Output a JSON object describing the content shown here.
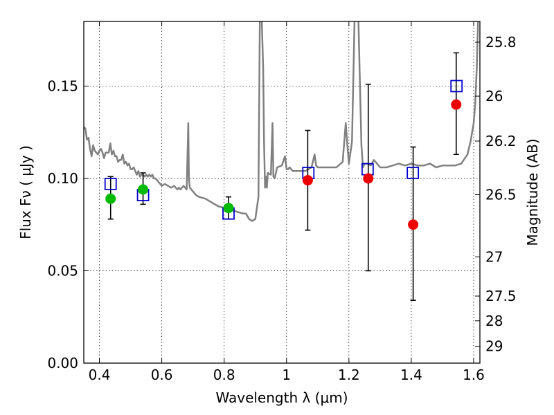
{
  "chart_data": {
    "type": "scatter",
    "xlabel": "Wavelength  λ (μm)",
    "ylabel": "Flux  Fν  ( μJy )",
    "y2label": "Magnitude (AB)",
    "xlim": [
      0.35,
      1.62
    ],
    "ylim": [
      0.0,
      0.185
    ],
    "x_ticks": [
      {
        "value": 0.4,
        "label": "0.4"
      },
      {
        "value": 0.6,
        "label": "0.6"
      },
      {
        "value": 0.8,
        "label": "0.8"
      },
      {
        "value": 1.0,
        "label": "1"
      },
      {
        "value": 1.2,
        "label": "1.2"
      },
      {
        "value": 1.4,
        "label": "1.4"
      },
      {
        "value": 1.6,
        "label": "1.6"
      }
    ],
    "y_ticks": [
      {
        "value": 0.0,
        "label": "0.00"
      },
      {
        "value": 0.05,
        "label": "0.05"
      },
      {
        "value": 0.1,
        "label": "0.10"
      },
      {
        "value": 0.15,
        "label": "0.15"
      }
    ],
    "y2_ticks": [
      {
        "mag": 25.8,
        "label": "25.8"
      },
      {
        "mag": 26.0,
        "label": "26"
      },
      {
        "mag": 26.2,
        "label": "26.2"
      },
      {
        "mag": 26.5,
        "label": "26.5"
      },
      {
        "mag": 27.0,
        "label": "27"
      },
      {
        "mag": 27.5,
        "label": "27.5"
      },
      {
        "mag": 28.0,
        "label": "28"
      },
      {
        "mag": 29.0,
        "label": "29"
      }
    ],
    "grid": true,
    "colors": {
      "sed_model": "#808080",
      "model_photometry": "#0000cc",
      "observed_green": "#00bb00",
      "observed_red": "#ee0000",
      "errorbar": "#000000"
    },
    "sed_model": {
      "x": [
        0.35,
        0.355,
        0.36,
        0.365,
        0.37,
        0.375,
        0.38,
        0.385,
        0.39,
        0.395,
        0.4,
        0.405,
        0.41,
        0.415,
        0.42,
        0.425,
        0.43,
        0.435,
        0.44,
        0.445,
        0.45,
        0.455,
        0.46,
        0.465,
        0.47,
        0.475,
        0.48,
        0.485,
        0.49,
        0.495,
        0.5,
        0.505,
        0.51,
        0.515,
        0.52,
        0.525,
        0.53,
        0.535,
        0.54,
        0.545,
        0.55,
        0.555,
        0.56,
        0.565,
        0.57,
        0.575,
        0.58,
        0.59,
        0.6,
        0.61,
        0.62,
        0.63,
        0.64,
        0.65,
        0.655,
        0.66,
        0.67,
        0.68,
        0.685,
        0.687,
        0.69,
        0.7,
        0.71,
        0.72,
        0.74,
        0.76,
        0.78,
        0.8,
        0.82,
        0.84,
        0.86,
        0.87,
        0.88,
        0.89,
        0.9,
        0.91,
        0.915,
        0.92,
        0.925,
        0.928,
        0.931,
        0.934,
        0.937,
        0.94,
        0.95,
        0.955,
        0.958,
        0.962,
        0.97,
        0.985,
        0.995,
        1.0,
        1.005,
        1.01,
        1.02,
        1.04,
        1.06,
        1.08,
        1.09,
        1.095,
        1.1,
        1.12,
        1.14,
        1.16,
        1.18,
        1.19,
        1.195,
        1.2,
        1.21,
        1.22,
        1.23,
        1.24,
        1.245,
        1.25,
        1.26,
        1.27,
        1.28,
        1.29,
        1.3,
        1.32,
        1.34,
        1.36,
        1.38,
        1.4,
        1.42,
        1.44,
        1.46,
        1.48,
        1.5,
        1.52,
        1.54,
        1.56,
        1.58,
        1.59,
        1.6,
        1.605,
        1.61,
        1.615,
        1.62
      ],
      "y": [
        0.128,
        0.127,
        0.121,
        0.122,
        0.116,
        0.112,
        0.118,
        0.115,
        0.114,
        0.113,
        0.115,
        0.116,
        0.114,
        0.111,
        0.114,
        0.114,
        0.114,
        0.119,
        0.113,
        0.115,
        0.112,
        0.112,
        0.109,
        0.11,
        0.11,
        0.113,
        0.108,
        0.109,
        0.107,
        0.108,
        0.105,
        0.105,
        0.106,
        0.104,
        0.102,
        0.104,
        0.101,
        0.102,
        0.102,
        0.101,
        0.102,
        0.101,
        0.102,
        0.101,
        0.102,
        0.1,
        0.1,
        0.098,
        0.096,
        0.097,
        0.096,
        0.095,
        0.096,
        0.094,
        0.095,
        0.094,
        0.096,
        0.094,
        0.13,
        0.1,
        0.095,
        0.093,
        0.091,
        0.09,
        0.089,
        0.087,
        0.085,
        0.084,
        0.083,
        0.082,
        0.081,
        0.081,
        0.078,
        0.077,
        0.078,
        0.09,
        0.2,
        0.19,
        0.16,
        0.12,
        0.095,
        0.101,
        0.095,
        0.103,
        0.102,
        0.13,
        0.101,
        0.1,
        0.106,
        0.107,
        0.112,
        0.105,
        0.105,
        0.106,
        0.104,
        0.104,
        0.104,
        0.106,
        0.113,
        0.107,
        0.106,
        0.106,
        0.106,
        0.106,
        0.109,
        0.13,
        0.118,
        0.108,
        0.12,
        0.2,
        0.19,
        0.118,
        0.106,
        0.108,
        0.108,
        0.107,
        0.11,
        0.108,
        0.106,
        0.106,
        0.107,
        0.108,
        0.107,
        0.108,
        0.107,
        0.107,
        0.108,
        0.106,
        0.107,
        0.107,
        0.107,
        0.108,
        0.113,
        0.12,
        0.13,
        0.14,
        0.16,
        0.19,
        0.2
      ]
    },
    "model_photometry": {
      "name": "model",
      "x": [
        0.436,
        0.54,
        0.814,
        1.07,
        1.26,
        1.405,
        1.545
      ],
      "y": [
        0.097,
        0.091,
        0.081,
        0.103,
        0.105,
        0.103,
        0.15
      ]
    },
    "observed_photometry": [
      {
        "x": 0.436,
        "y": 0.089,
        "yerr_low": 0.078,
        "yerr_high": 0.101,
        "color": "green"
      },
      {
        "x": 0.54,
        "y": 0.094,
        "yerr_low": 0.086,
        "yerr_high": 0.103,
        "color": "green"
      },
      {
        "x": 0.814,
        "y": 0.084,
        "yerr_low": 0.078,
        "yerr_high": 0.09,
        "color": "green"
      },
      {
        "x": 1.068,
        "y": 0.099,
        "yerr_low": 0.072,
        "yerr_high": 0.126,
        "color": "red"
      },
      {
        "x": 1.262,
        "y": 0.1,
        "yerr_low": 0.05,
        "yerr_high": 0.151,
        "color": "red"
      },
      {
        "x": 1.406,
        "y": 0.075,
        "yerr_low": 0.034,
        "yerr_high": 0.117,
        "color": "red"
      },
      {
        "x": 1.544,
        "y": 0.14,
        "yerr_low": 0.113,
        "yerr_high": 0.168,
        "color": "red"
      }
    ]
  }
}
